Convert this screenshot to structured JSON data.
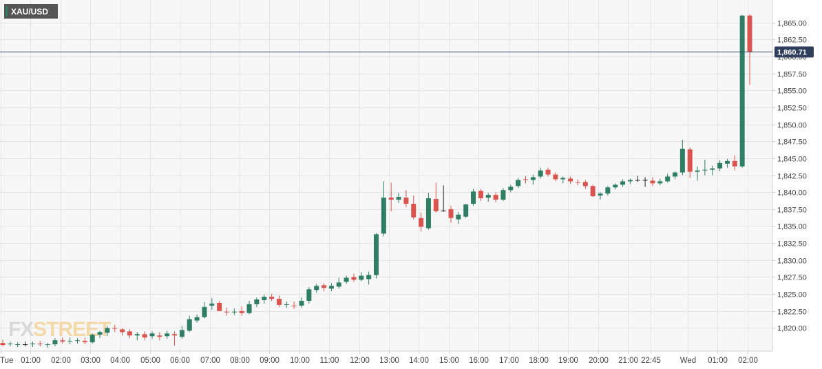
{
  "symbol": "XAU/USD",
  "last_price_label": "1,860.71",
  "colors": {
    "up": "#2e7d64",
    "down": "#d9534f",
    "doji": "#222222",
    "price_line": "#2f3e5c"
  },
  "logo": {
    "part1": "FX",
    "part2": "STREET"
  },
  "chart_data": {
    "type": "candlestick",
    "interval_minutes": 15,
    "ylim": [
      1816.6,
      1868.3
    ],
    "grid": true,
    "y_ticks": [
      {
        "value": 1820.0,
        "label": "1,820.00"
      },
      {
        "value": 1822.5,
        "label": "1,822.50"
      },
      {
        "value": 1825.0,
        "label": "1,825.00"
      },
      {
        "value": 1827.5,
        "label": "1,827.50"
      },
      {
        "value": 1830.0,
        "label": "1,830.00"
      },
      {
        "value": 1832.5,
        "label": "1,832.50"
      },
      {
        "value": 1835.0,
        "label": "1,835.00"
      },
      {
        "value": 1837.5,
        "label": "1,837.50"
      },
      {
        "value": 1840.0,
        "label": "1,840.00"
      },
      {
        "value": 1842.5,
        "label": "1,842.50"
      },
      {
        "value": 1845.0,
        "label": "1,845.00"
      },
      {
        "value": 1847.5,
        "label": "1,847.50"
      },
      {
        "value": 1850.0,
        "label": "1,850.00"
      },
      {
        "value": 1852.5,
        "label": "1,852.50"
      },
      {
        "value": 1855.0,
        "label": "1,855.00"
      },
      {
        "value": 1857.5,
        "label": "1,857.50"
      },
      {
        "value": 1860.0,
        "label": "1,860.00"
      },
      {
        "value": 1862.5,
        "label": "1,862.50"
      },
      {
        "value": 1865.0,
        "label": "1,865.00"
      }
    ],
    "x_ticks": [
      {
        "label": "Tue",
        "bar": -0.3
      },
      {
        "label": "01:00",
        "bar": 3.7
      },
      {
        "label": "02:00",
        "bar": 7.7
      },
      {
        "label": "03:00",
        "bar": 11.7
      },
      {
        "label": "04:00",
        "bar": 15.7
      },
      {
        "label": "05:00",
        "bar": 19.7
      },
      {
        "label": "06:00",
        "bar": 23.7
      },
      {
        "label": "07:00",
        "bar": 27.7
      },
      {
        "label": "08:00",
        "bar": 31.7
      },
      {
        "label": "09:00",
        "bar": 35.7
      },
      {
        "label": "10:00",
        "bar": 39.7
      },
      {
        "label": "11:00",
        "bar": 43.7
      },
      {
        "label": "12:00",
        "bar": 47.7
      },
      {
        "label": "13:00",
        "bar": 51.7
      },
      {
        "label": "14:00",
        "bar": 55.7
      },
      {
        "label": "15:00",
        "bar": 59.7
      },
      {
        "label": "16:00",
        "bar": 63.7
      },
      {
        "label": "17:00",
        "bar": 67.7
      },
      {
        "label": "18:00",
        "bar": 71.7
      },
      {
        "label": "19:00",
        "bar": 75.7
      },
      {
        "label": "20:00",
        "bar": 79.7
      },
      {
        "label": "21:00",
        "bar": 83.7
      },
      {
        "label": "22:45",
        "bar": 86.7
      },
      {
        "label": "Wed",
        "bar": 91.7
      },
      {
        "label": "01:00",
        "bar": 95.7
      },
      {
        "label": "02:00",
        "bar": 99.7
      }
    ],
    "last_price": 1860.71,
    "candles": [
      {
        "o": 1817.8,
        "h": 1818.3,
        "l": 1817.3,
        "c": 1817.5
      },
      {
        "o": 1817.6,
        "h": 1818.0,
        "l": 1817.3,
        "c": 1817.7
      },
      {
        "o": 1817.5,
        "h": 1817.9,
        "l": 1817.2,
        "c": 1817.6
      },
      {
        "o": 1817.6,
        "h": 1818.0,
        "l": 1817.3,
        "c": 1817.6
      },
      {
        "o": 1817.6,
        "h": 1818.0,
        "l": 1817.2,
        "c": 1817.7
      },
      {
        "o": 1817.7,
        "h": 1818.1,
        "l": 1817.3,
        "c": 1817.6
      },
      {
        "o": 1817.5,
        "h": 1817.8,
        "l": 1817.1,
        "c": 1817.6
      },
      {
        "o": 1817.6,
        "h": 1818.5,
        "l": 1817.3,
        "c": 1818.2
      },
      {
        "o": 1818.2,
        "h": 1818.6,
        "l": 1817.7,
        "c": 1818.0
      },
      {
        "o": 1818.0,
        "h": 1818.6,
        "l": 1817.6,
        "c": 1818.1
      },
      {
        "o": 1818.1,
        "h": 1818.5,
        "l": 1817.7,
        "c": 1818.2
      },
      {
        "o": 1818.1,
        "h": 1818.6,
        "l": 1817.6,
        "c": 1817.9
      },
      {
        "o": 1817.9,
        "h": 1819.2,
        "l": 1817.7,
        "c": 1819.0
      },
      {
        "o": 1819.0,
        "h": 1819.6,
        "l": 1818.5,
        "c": 1819.4
      },
      {
        "o": 1819.3,
        "h": 1820.3,
        "l": 1818.8,
        "c": 1820.0
      },
      {
        "o": 1820.0,
        "h": 1820.5,
        "l": 1819.4,
        "c": 1819.9
      },
      {
        "o": 1819.8,
        "h": 1820.0,
        "l": 1818.9,
        "c": 1819.4
      },
      {
        "o": 1819.5,
        "h": 1819.8,
        "l": 1818.5,
        "c": 1818.9
      },
      {
        "o": 1818.9,
        "h": 1819.4,
        "l": 1818.2,
        "c": 1819.1
      },
      {
        "o": 1819.1,
        "h": 1819.5,
        "l": 1818.2,
        "c": 1818.6
      },
      {
        "o": 1818.8,
        "h": 1819.5,
        "l": 1818.4,
        "c": 1819.2
      },
      {
        "o": 1818.9,
        "h": 1819.4,
        "l": 1818.2,
        "c": 1818.7
      },
      {
        "o": 1818.8,
        "h": 1819.6,
        "l": 1818.4,
        "c": 1819.2
      },
      {
        "o": 1819.1,
        "h": 1819.5,
        "l": 1817.4,
        "c": 1818.9
      },
      {
        "o": 1818.7,
        "h": 1820.3,
        "l": 1818.4,
        "c": 1819.7
      },
      {
        "o": 1819.6,
        "h": 1821.8,
        "l": 1819.4,
        "c": 1821.3
      },
      {
        "o": 1821.1,
        "h": 1822.0,
        "l": 1820.8,
        "c": 1821.6
      },
      {
        "o": 1821.6,
        "h": 1823.8,
        "l": 1821.4,
        "c": 1823.1
      },
      {
        "o": 1823.3,
        "h": 1824.4,
        "l": 1822.7,
        "c": 1823.6
      },
      {
        "o": 1823.7,
        "h": 1824.0,
        "l": 1822.5,
        "c": 1822.5
      },
      {
        "o": 1822.4,
        "h": 1823.0,
        "l": 1821.8,
        "c": 1822.3
      },
      {
        "o": 1822.3,
        "h": 1822.9,
        "l": 1821.9,
        "c": 1822.4
      },
      {
        "o": 1822.5,
        "h": 1823.2,
        "l": 1821.8,
        "c": 1822.2
      },
      {
        "o": 1822.2,
        "h": 1824.0,
        "l": 1822.0,
        "c": 1823.5
      },
      {
        "o": 1823.5,
        "h": 1824.5,
        "l": 1823.1,
        "c": 1824.2
      },
      {
        "o": 1824.1,
        "h": 1824.9,
        "l": 1823.6,
        "c": 1824.6
      },
      {
        "o": 1824.6,
        "h": 1825.0,
        "l": 1824.0,
        "c": 1824.3
      },
      {
        "o": 1824.3,
        "h": 1824.8,
        "l": 1823.1,
        "c": 1823.4
      },
      {
        "o": 1823.4,
        "h": 1823.9,
        "l": 1823.0,
        "c": 1823.5
      },
      {
        "o": 1823.3,
        "h": 1823.9,
        "l": 1822.8,
        "c": 1823.2
      },
      {
        "o": 1823.3,
        "h": 1824.5,
        "l": 1823.0,
        "c": 1824.0
      },
      {
        "o": 1824.0,
        "h": 1826.0,
        "l": 1823.6,
        "c": 1825.7
      },
      {
        "o": 1825.6,
        "h": 1826.5,
        "l": 1825.2,
        "c": 1826.2
      },
      {
        "o": 1826.3,
        "h": 1826.6,
        "l": 1825.4,
        "c": 1825.9
      },
      {
        "o": 1825.8,
        "h": 1826.6,
        "l": 1825.4,
        "c": 1826.2
      },
      {
        "o": 1826.1,
        "h": 1827.4,
        "l": 1825.8,
        "c": 1826.7
      },
      {
        "o": 1826.8,
        "h": 1827.7,
        "l": 1826.5,
        "c": 1827.4
      },
      {
        "o": 1827.5,
        "h": 1828.0,
        "l": 1826.8,
        "c": 1827.1
      },
      {
        "o": 1827.1,
        "h": 1828.2,
        "l": 1826.9,
        "c": 1827.7
      },
      {
        "o": 1827.2,
        "h": 1828.3,
        "l": 1826.4,
        "c": 1827.8
      },
      {
        "o": 1827.8,
        "h": 1834.0,
        "l": 1827.3,
        "c": 1833.8
      },
      {
        "o": 1833.9,
        "h": 1841.6,
        "l": 1833.5,
        "c": 1839.2
      },
      {
        "o": 1839.2,
        "h": 1841.4,
        "l": 1837.2,
        "c": 1838.9
      },
      {
        "o": 1838.9,
        "h": 1839.9,
        "l": 1838.4,
        "c": 1839.3
      },
      {
        "o": 1839.2,
        "h": 1840.3,
        "l": 1837.8,
        "c": 1838.3
      },
      {
        "o": 1838.3,
        "h": 1839.5,
        "l": 1836.0,
        "c": 1836.3
      },
      {
        "o": 1836.2,
        "h": 1837.0,
        "l": 1834.2,
        "c": 1834.9
      },
      {
        "o": 1834.7,
        "h": 1839.9,
        "l": 1834.5,
        "c": 1839.1
      },
      {
        "o": 1839.0,
        "h": 1841.4,
        "l": 1837.0,
        "c": 1837.2
      },
      {
        "o": 1837.3,
        "h": 1841.0,
        "l": 1837.1,
        "c": 1837.3
      },
      {
        "o": 1837.5,
        "h": 1838.0,
        "l": 1835.5,
        "c": 1836.2
      },
      {
        "o": 1836.0,
        "h": 1837.1,
        "l": 1835.3,
        "c": 1836.7
      },
      {
        "o": 1836.4,
        "h": 1838.3,
        "l": 1836.2,
        "c": 1838.2
      },
      {
        "o": 1838.3,
        "h": 1840.5,
        "l": 1838.0,
        "c": 1840.1
      },
      {
        "o": 1840.2,
        "h": 1840.5,
        "l": 1838.7,
        "c": 1839.1
      },
      {
        "o": 1839.2,
        "h": 1839.9,
        "l": 1838.6,
        "c": 1839.6
      },
      {
        "o": 1839.6,
        "h": 1840.0,
        "l": 1838.5,
        "c": 1838.9
      },
      {
        "o": 1838.9,
        "h": 1840.6,
        "l": 1838.7,
        "c": 1840.3
      },
      {
        "o": 1840.3,
        "h": 1841.1,
        "l": 1840.0,
        "c": 1840.8
      },
      {
        "o": 1840.9,
        "h": 1842.1,
        "l": 1840.6,
        "c": 1841.8
      },
      {
        "o": 1841.9,
        "h": 1842.4,
        "l": 1841.3,
        "c": 1841.8
      },
      {
        "o": 1841.8,
        "h": 1842.6,
        "l": 1841.1,
        "c": 1842.2
      },
      {
        "o": 1842.3,
        "h": 1843.6,
        "l": 1842.0,
        "c": 1843.2
      },
      {
        "o": 1843.3,
        "h": 1843.6,
        "l": 1842.3,
        "c": 1842.6
      },
      {
        "o": 1842.6,
        "h": 1842.9,
        "l": 1841.6,
        "c": 1841.9
      },
      {
        "o": 1841.9,
        "h": 1842.3,
        "l": 1841.3,
        "c": 1842.1
      },
      {
        "o": 1842.0,
        "h": 1842.3,
        "l": 1841.2,
        "c": 1841.6
      },
      {
        "o": 1841.5,
        "h": 1841.9,
        "l": 1841.0,
        "c": 1841.4
      },
      {
        "o": 1841.5,
        "h": 1841.8,
        "l": 1840.5,
        "c": 1840.9
      },
      {
        "o": 1840.9,
        "h": 1841.1,
        "l": 1839.3,
        "c": 1839.4
      },
      {
        "o": 1839.5,
        "h": 1840.0,
        "l": 1838.9,
        "c": 1839.8
      },
      {
        "o": 1839.8,
        "h": 1840.9,
        "l": 1839.5,
        "c": 1840.7
      },
      {
        "o": 1840.7,
        "h": 1841.3,
        "l": 1840.4,
        "c": 1841.1
      },
      {
        "o": 1841.1,
        "h": 1841.9,
        "l": 1840.8,
        "c": 1841.6
      },
      {
        "o": 1841.6,
        "h": 1842.0,
        "l": 1841.2,
        "c": 1841.8
      },
      {
        "o": 1841.8,
        "h": 1842.4,
        "l": 1841.5,
        "c": 1841.8
      },
      {
        "o": 1841.8,
        "h": 1842.2,
        "l": 1840.8,
        "c": 1841.8
      },
      {
        "o": 1841.7,
        "h": 1842.2,
        "l": 1840.9,
        "c": 1841.3
      },
      {
        "o": 1841.3,
        "h": 1842.0,
        "l": 1841.0,
        "c": 1841.6
      },
      {
        "o": 1841.6,
        "h": 1842.7,
        "l": 1841.4,
        "c": 1842.3
      },
      {
        "o": 1842.3,
        "h": 1843.1,
        "l": 1841.9,
        "c": 1842.9
      },
      {
        "o": 1842.9,
        "h": 1847.7,
        "l": 1842.5,
        "c": 1846.4
      },
      {
        "o": 1846.3,
        "h": 1846.6,
        "l": 1842.1,
        "c": 1843.0
      },
      {
        "o": 1843.0,
        "h": 1843.8,
        "l": 1841.7,
        "c": 1843.2
      },
      {
        "o": 1843.2,
        "h": 1844.8,
        "l": 1842.5,
        "c": 1843.3
      },
      {
        "o": 1843.3,
        "h": 1843.9,
        "l": 1842.5,
        "c": 1843.5
      },
      {
        "o": 1843.5,
        "h": 1844.7,
        "l": 1843.1,
        "c": 1844.3
      },
      {
        "o": 1844.2,
        "h": 1844.9,
        "l": 1843.6,
        "c": 1844.6
      },
      {
        "o": 1844.6,
        "h": 1845.4,
        "l": 1843.2,
        "c": 1843.8
      },
      {
        "o": 1843.8,
        "h": 1866.1,
        "l": 1843.6,
        "c": 1866.0
      },
      {
        "o": 1866.0,
        "h": 1866.2,
        "l": 1855.8,
        "c": 1860.7
      }
    ]
  }
}
